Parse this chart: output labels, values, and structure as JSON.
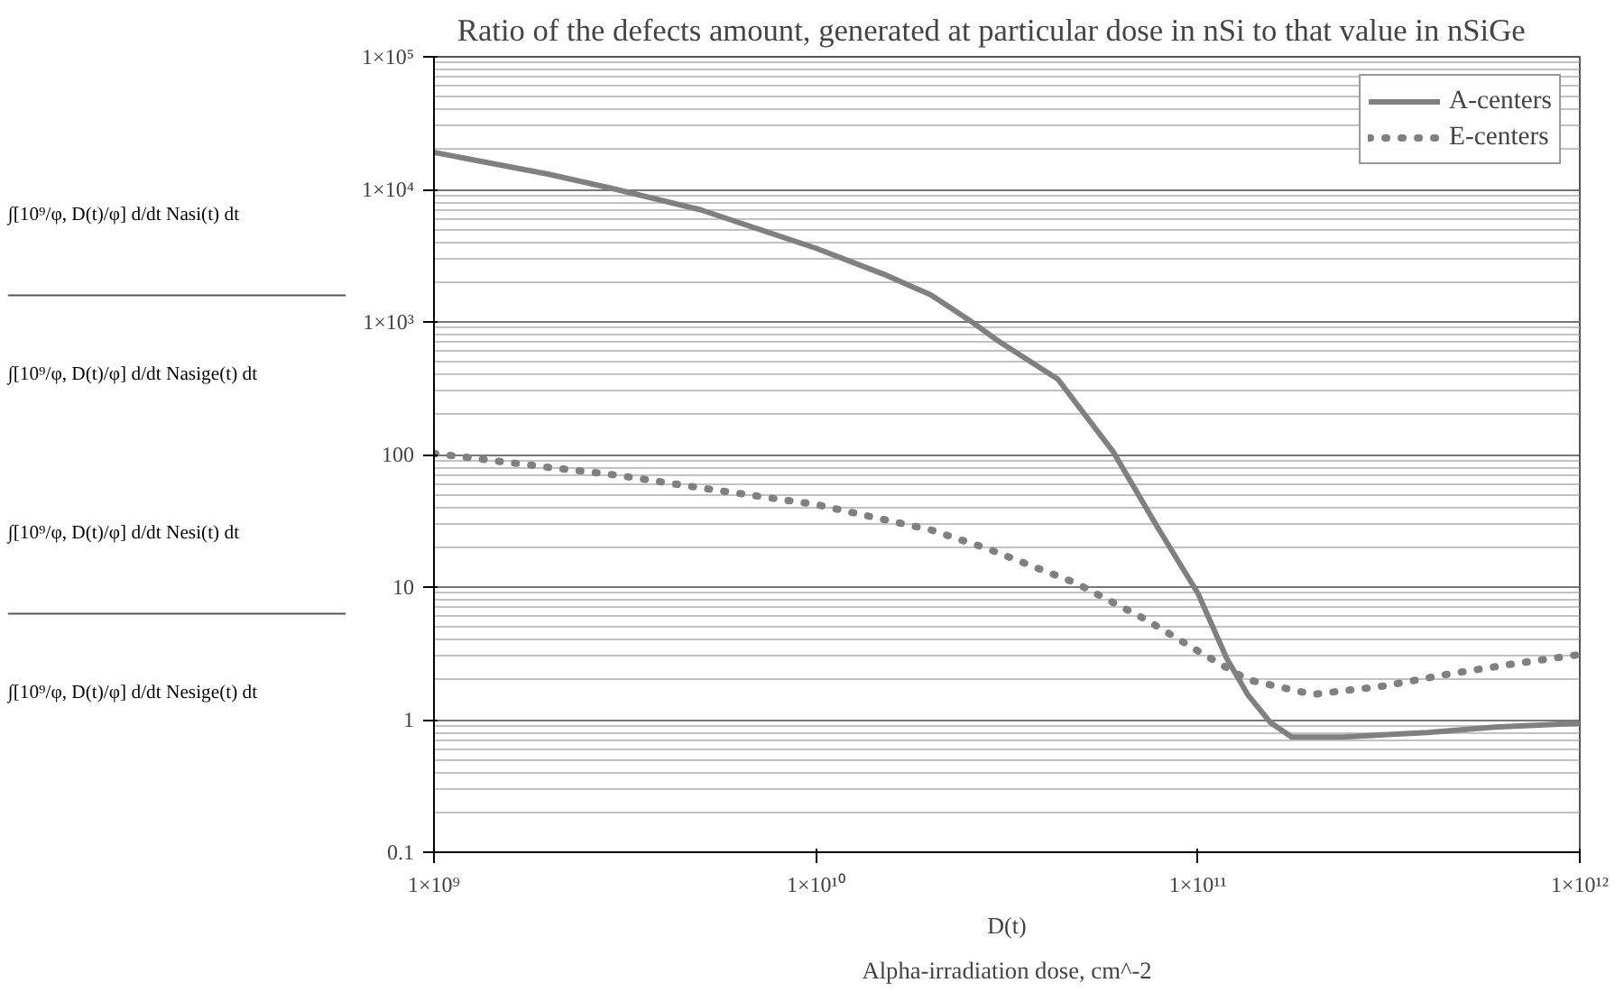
{
  "chart_data": {
    "type": "line",
    "title": "Ratio of the  defects amount,  generated  at particular dose  in nSi to that value in nSiGe",
    "xlabel": "D(t)",
    "ylabel": "∫[10⁹/φ, D(t)/φ] d/dt Nasi(t) dt\n∫[10⁹/φ, D(t)/φ] d/dt Nasige(t) dt\n∫[10⁹/φ, D(t)/φ] d/dt Nesi(t) dt\n∫[10⁹/φ, D(t)/φ] d/dt Nesige(t) dt",
    "annotations": [
      "Alpha-irradiation dose, cm^-2"
    ],
    "log": "xy",
    "grid": true,
    "legend": "top right",
    "xlim": [
      1000000000.0,
      1000000000000.0
    ],
    "ylim": [
      0.1,
      100000
    ],
    "xticks": [
      {
        "value": 1000000000.0,
        "label": "1×10⁹"
      },
      {
        "value": 10000000000.0,
        "label": "1×10¹⁰"
      },
      {
        "value": 100000000000.0,
        "label": "1×10¹¹"
      },
      {
        "value": 1000000000000.0,
        "label": "1×10¹²"
      }
    ],
    "yticks": [
      0.1,
      1,
      10,
      100,
      {
        "value": 1000,
        "label": "1×10³"
      },
      {
        "value": 10000,
        "label": "1×10⁴"
      },
      {
        "value": 100000,
        "label": "1×10⁵"
      }
    ],
    "series": [
      {
        "name": "A-centers",
        "color": "#808080",
        "line_style": "solid",
        "x": [
          1000000000.0,
          2000000000.0,
          3000000000.0,
          5000000000.0,
          10000000000.0,
          15000000000.0,
          20000000000.0,
          25000000000.0,
          30000000000.0,
          43000000000.0,
          60000000000.0,
          78000000000.0,
          100000000000.0,
          119000000000.0,
          135000000000.0,
          155000000000.0,
          176000000000.0,
          240000000000.0,
          400000000000.0,
          600000000000.0,
          1000000000000.0
        ],
        "values": [
          19000,
          13000,
          10000,
          7000,
          3600,
          2300,
          1600,
          1050,
          720,
          370,
          105,
          29,
          9,
          2.9,
          1.55,
          0.95,
          0.74,
          0.74,
          0.8,
          0.88,
          0.94
        ]
      },
      {
        "name": "E-centers",
        "color": "#808080",
        "line_style": "dotted",
        "x": [
          1000000000.0,
          2000000000.0,
          3000000000.0,
          5000000000.0,
          10000000000.0,
          20000000000.0,
          28000000000.0,
          48000000000.0,
          73000000000.0,
          100000000000.0,
          135000000000.0,
          200000000000.0,
          310000000000.0,
          450000000000.0,
          650000000000.0,
          1000000000000.0
        ],
        "values": [
          102,
          80,
          70,
          56,
          42,
          27,
          19.6,
          10.7,
          5.7,
          3.3,
          2.0,
          1.55,
          1.8,
          2.2,
          2.6,
          3.1
        ]
      }
    ]
  }
}
